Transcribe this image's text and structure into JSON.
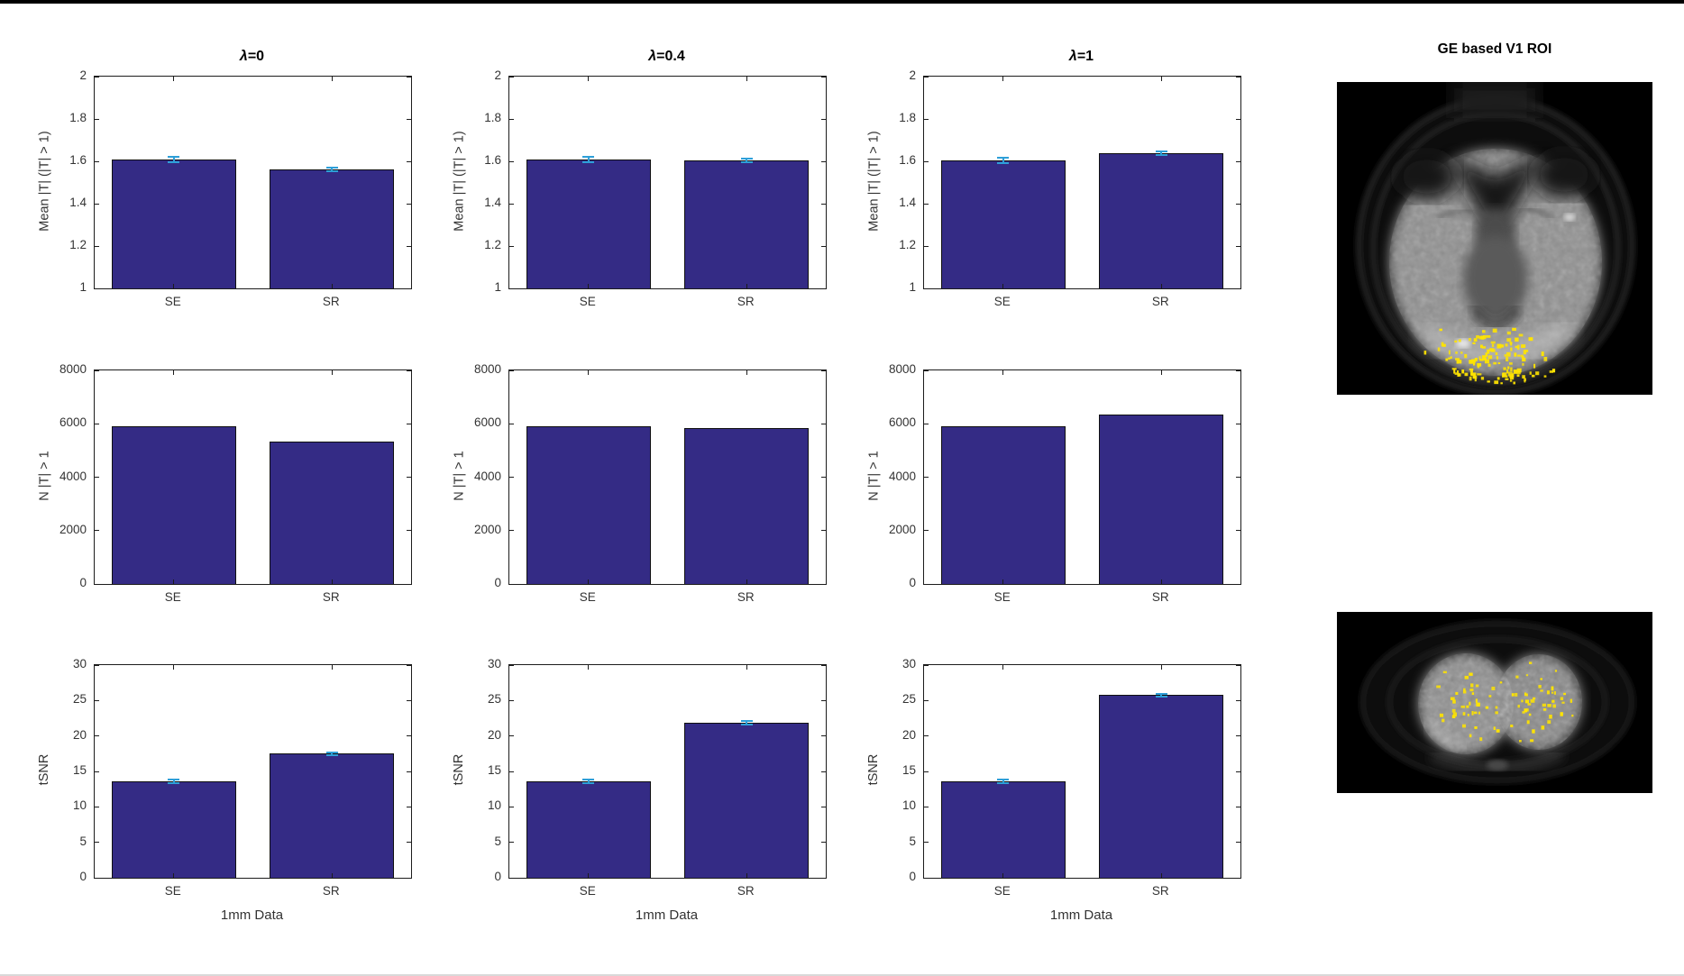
{
  "figure": {
    "background": "#ffffff",
    "top_border_color": "#000000"
  },
  "palette": {
    "bar_fill": "#342b85",
    "bar_edge": "#101010",
    "error_bar": "#2e9fd8",
    "axis": "#1c1c1c",
    "tick_text": "#333333",
    "title_text": "#000000",
    "roi_highlight": "#ffe400"
  },
  "roi_panel": {
    "title": "GE based V1 ROI"
  },
  "chart_data": {
    "type": "bar",
    "grid": false,
    "legend": null,
    "categories": [
      "SE",
      "SR"
    ],
    "xlabel": "1mm Data",
    "columns": [
      {
        "title": "λ=0",
        "symbol": "λ",
        "suffix": "=0"
      },
      {
        "title": "λ=0.4",
        "symbol": "λ",
        "suffix": "=0.4"
      },
      {
        "title": "λ=1",
        "symbol": "λ",
        "suffix": "=1"
      }
    ],
    "rows": [
      {
        "ylabel": "Mean |T| (|T| > 1)",
        "ylim": [
          1,
          2
        ],
        "yticks": [
          1,
          1.2,
          1.4,
          1.6,
          1.8,
          2
        ],
        "series": [
          {
            "column": "λ=0",
            "values": [
              1.61,
              1.563
            ],
            "errors": [
              0.012,
              0.008
            ]
          },
          {
            "column": "λ=0.4",
            "values": [
              1.608,
              1.604
            ],
            "errors": [
              0.012,
              0.009
            ]
          },
          {
            "column": "λ=1",
            "values": [
              1.605,
              1.638
            ],
            "errors": [
              0.013,
              0.01
            ]
          }
        ]
      },
      {
        "ylabel": "N |T| > 1",
        "ylim": [
          0,
          8000
        ],
        "yticks": [
          0,
          2000,
          4000,
          6000,
          8000
        ],
        "series": [
          {
            "column": "λ=0",
            "values": [
              5910,
              5330
            ],
            "errors": null
          },
          {
            "column": "λ=0.4",
            "values": [
              5905,
              5855
            ],
            "errors": null
          },
          {
            "column": "λ=1",
            "values": [
              5910,
              6340
            ],
            "errors": null
          }
        ]
      },
      {
        "ylabel": "tSNR",
        "ylim": [
          0,
          30
        ],
        "yticks": [
          0,
          5,
          10,
          15,
          20,
          25,
          30
        ],
        "series": [
          {
            "column": "λ=0",
            "values": [
              13.6,
              17.5
            ],
            "errors": [
              0.2,
              0.2
            ]
          },
          {
            "column": "λ=0.4",
            "values": [
              13.6,
              21.9
            ],
            "errors": [
              0.2,
              0.25
            ]
          },
          {
            "column": "λ=1",
            "values": [
              13.6,
              25.8
            ],
            "errors": [
              0.2,
              0.2
            ]
          }
        ],
        "xlabel": "1mm Data"
      }
    ]
  }
}
